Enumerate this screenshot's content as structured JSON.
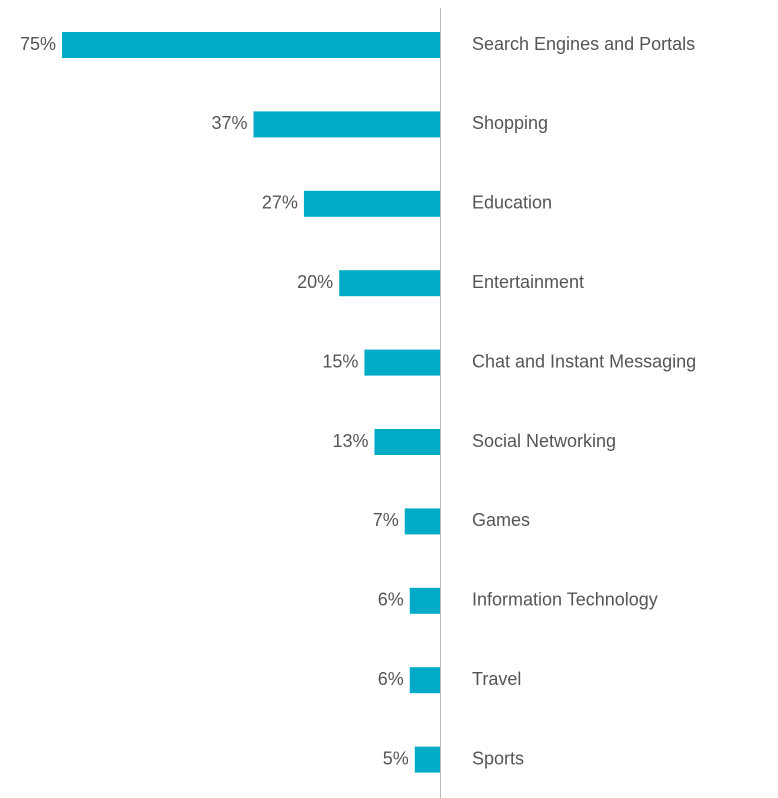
{
  "chart_data": {
    "type": "bar",
    "orientation": "horizontal-left",
    "categories": [
      "Search Engines and Portals",
      "Shopping",
      "Education",
      "Entertainment",
      "Chat and Instant Messaging",
      "Social Networking",
      "Games",
      "Information Technology",
      "Travel",
      "Sports"
    ],
    "values": [
      75,
      37,
      27,
      20,
      15,
      13,
      7,
      6,
      6,
      5
    ],
    "value_labels": [
      "75%",
      "37%",
      "27%",
      "20%",
      "15%",
      "13%",
      "7%",
      "6%",
      "6%",
      "5%"
    ],
    "color": "#00abc7"
  }
}
